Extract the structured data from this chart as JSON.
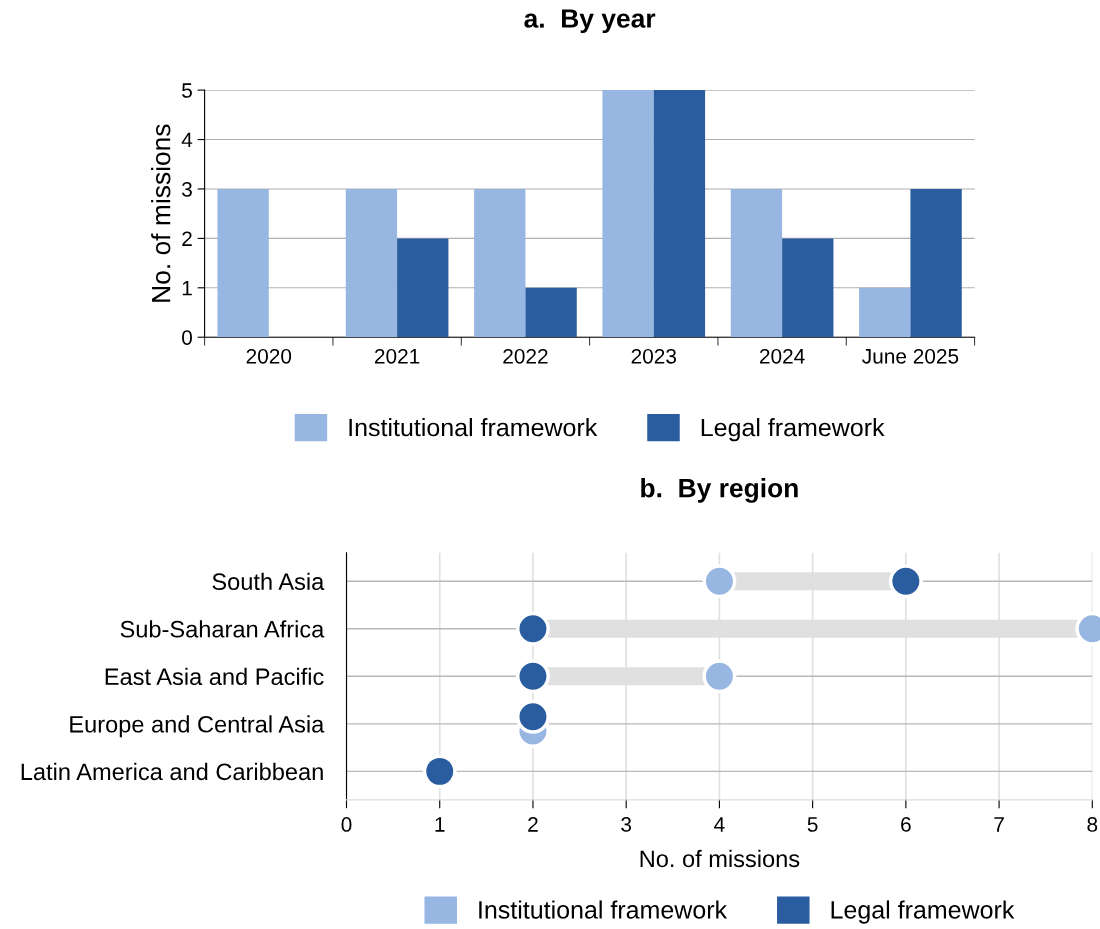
{
  "chart_data": [
    {
      "type": "bar",
      "title": "a.  By year",
      "ylabel": "No. of missions",
      "categories": [
        "2020",
        "2021",
        "2022",
        "2023",
        "2024",
        "June 2025"
      ],
      "series": [
        {
          "name": "Institutional framework",
          "color": "#97b6e1",
          "values": [
            3,
            3,
            3,
            5,
            3,
            1
          ]
        },
        {
          "name": "Legal framework",
          "color": "#2a5d9f",
          "values": [
            0,
            2,
            1,
            5,
            2,
            3
          ]
        }
      ],
      "ylim": [
        0,
        5
      ],
      "yticks": [
        0,
        1,
        2,
        3,
        4,
        5
      ],
      "grid": "y",
      "legend": "bottom"
    },
    {
      "type": "scatter",
      "orientation": "horizontal",
      "title": "b.  By region",
      "xlabel": "No. of missions",
      "categories": [
        "South Asia",
        "Sub-Saharan Africa",
        "East Asia and Pacific",
        "Europe and Central Asia",
        "Latin America and Caribbean"
      ],
      "series": [
        {
          "name": "Institutional framework",
          "color": "#97b6e1",
          "values": [
            4,
            8,
            4,
            2,
            null
          ]
        },
        {
          "name": "Legal framework",
          "color": "#2a5d9f",
          "values": [
            6,
            2,
            2,
            2,
            1
          ]
        }
      ],
      "xlim": [
        0,
        8
      ],
      "xticks": [
        0,
        1,
        2,
        3,
        4,
        5,
        6,
        7,
        8
      ],
      "grid": true,
      "marker": "circle",
      "legend": "bottom"
    }
  ]
}
